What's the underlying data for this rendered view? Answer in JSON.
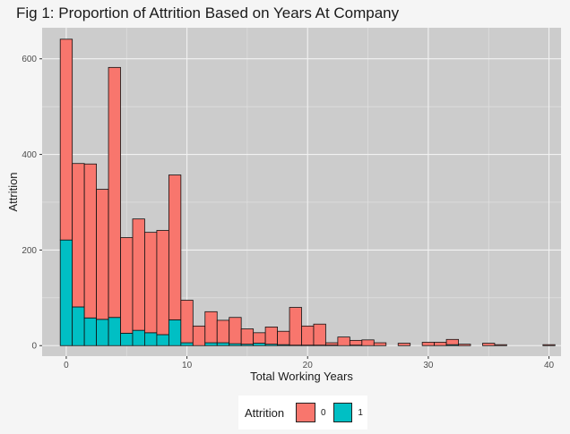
{
  "chart_data": {
    "type": "bar",
    "title": "Fig 1: Proportion of Attrition Based on Years At Company",
    "xlabel": "Total Working Years",
    "ylabel": "Attrition",
    "xlim": [
      -2,
      41
    ],
    "ylim": [
      -22,
      665
    ],
    "x_ticks": [
      0,
      10,
      20,
      30,
      40
    ],
    "y_ticks": [
      0,
      200,
      400,
      600
    ],
    "bin_width": 1,
    "legend": {
      "title": "Attrition",
      "position": "bottom"
    },
    "x": [
      0,
      1,
      2,
      3,
      4,
      5,
      6,
      7,
      8,
      9,
      10,
      11,
      12,
      13,
      14,
      15,
      16,
      17,
      18,
      19,
      20,
      21,
      22,
      23,
      24,
      25,
      26,
      27,
      28,
      29,
      30,
      31,
      32,
      33,
      34,
      35,
      36,
      37,
      38,
      39,
      40
    ],
    "series": [
      {
        "name": "0",
        "color": "#F8766D",
        "values": [
          420,
          300,
          322,
          272,
          523,
          200,
          233,
          210,
          218,
          303,
          89,
          41,
          65,
          47,
          55,
          32,
          22,
          36,
          28,
          79,
          40,
          44,
          5,
          18,
          10,
          12,
          6,
          0,
          5,
          0,
          7,
          7,
          11,
          3,
          0,
          5,
          2,
          0,
          0,
          0,
          2
        ]
      },
      {
        "name": "1",
        "color": "#00BFC4",
        "values": [
          221,
          81,
          58,
          55,
          59,
          26,
          32,
          27,
          23,
          54,
          6,
          0,
          6,
          6,
          4,
          3,
          5,
          3,
          2,
          1,
          1,
          1,
          1,
          0,
          1,
          0,
          0,
          0,
          0,
          0,
          0,
          0,
          2,
          0,
          0,
          0,
          0,
          0,
          0,
          0,
          0
        ]
      }
    ],
    "grid": true
  }
}
